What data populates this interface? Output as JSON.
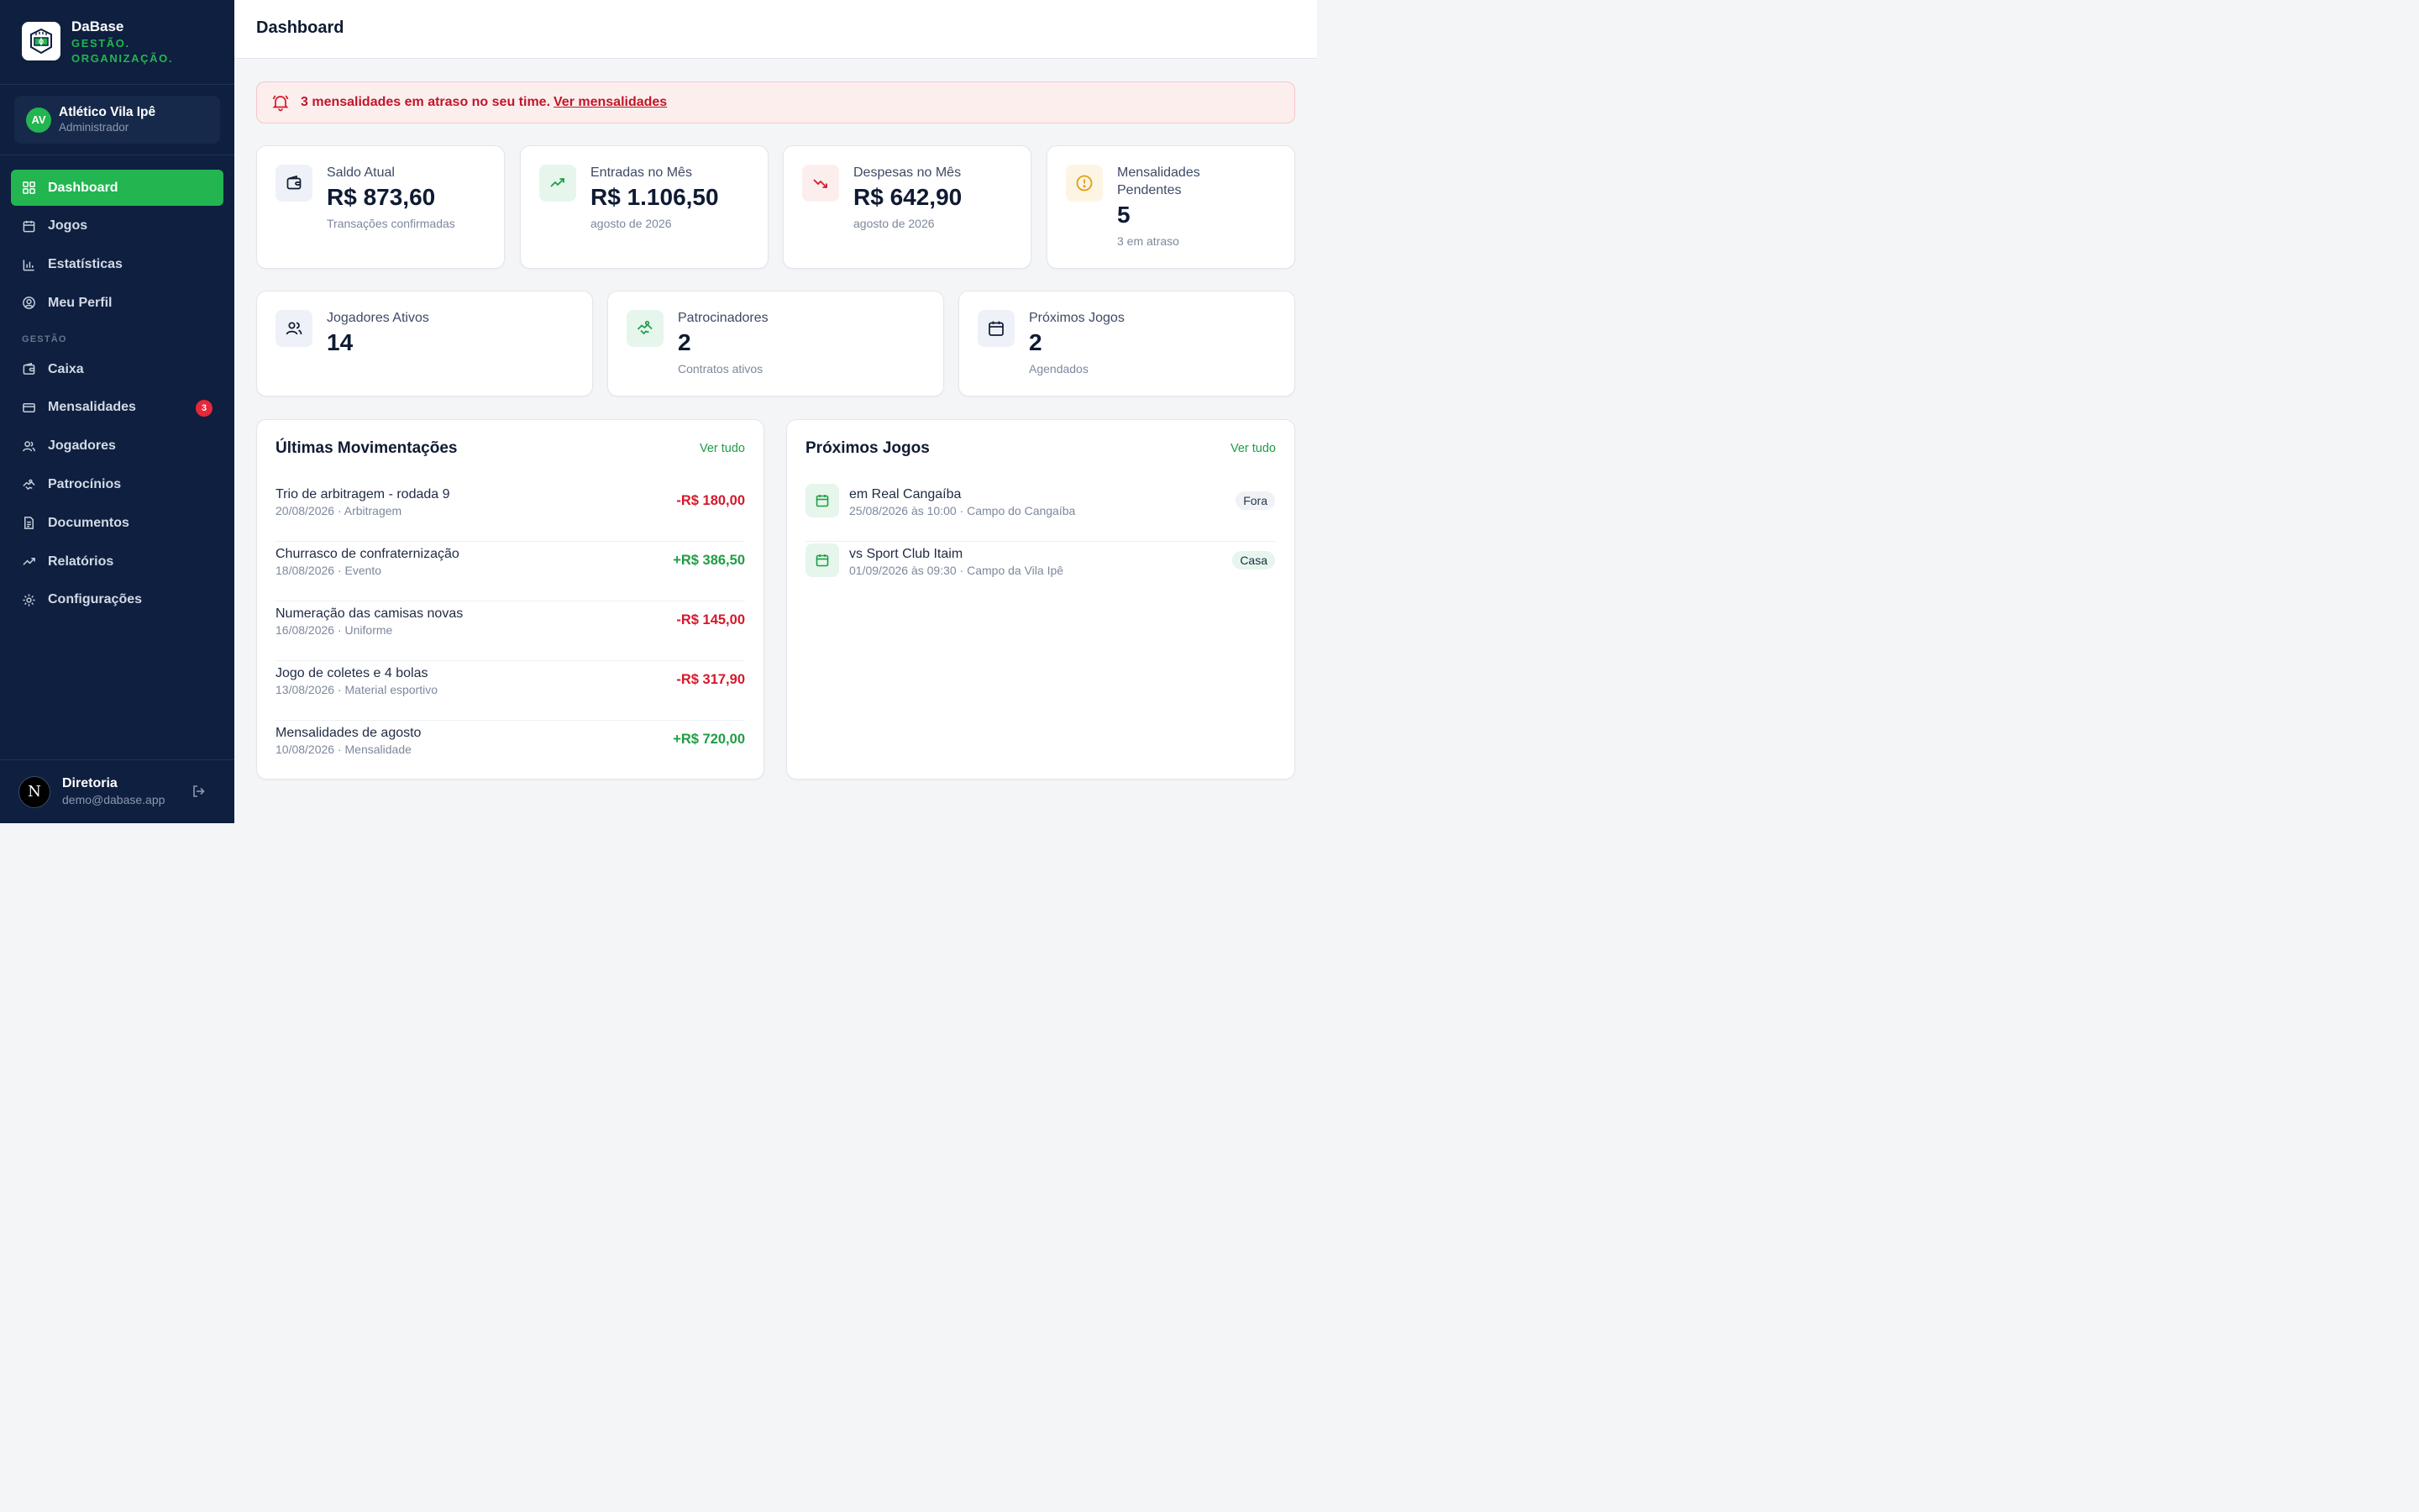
{
  "brand": {
    "name": "DaBase",
    "tagline_1": "GESTÃO.",
    "tagline_2": "ORGANIZAÇÃO."
  },
  "team": {
    "initials": "AV",
    "name": "Atlético Vila Ipê",
    "role": "Administrador"
  },
  "nav": {
    "dashboard": "Dashboard",
    "jogos": "Jogos",
    "estatisticas": "Estatísticas",
    "perfil": "Meu Perfil",
    "section_gestao": "GESTÃO",
    "caixa": "Caixa",
    "mensalidades": "Mensalidades",
    "mensalidades_badge": "3",
    "jogadores": "Jogadores",
    "patrocinios": "Patrocínios",
    "documentos": "Documentos",
    "relatorios": "Relatórios",
    "configuracoes": "Configurações"
  },
  "user": {
    "initial": "N",
    "name": "Diretoria",
    "email": "demo@dabase.app"
  },
  "header": {
    "title": "Dashboard"
  },
  "alert": {
    "message": "3 mensalidades em atraso no seu time.",
    "link": "Ver mensalidades"
  },
  "stats": {
    "saldo": {
      "label": "Saldo Atual",
      "value": "R$ 873,60",
      "sub": "Transações confirmadas"
    },
    "entradas": {
      "label": "Entradas no Mês",
      "value": "R$ 1.106,50",
      "sub": "agosto de 2026"
    },
    "despesas": {
      "label": "Despesas no Mês",
      "value": "R$ 642,90",
      "sub": "agosto de 2026"
    },
    "mensalidades": {
      "label_1": "Mensalidades",
      "label_2": "Pendentes",
      "value": "5",
      "sub": "3 em atraso"
    },
    "jogadores": {
      "label": "Jogadores Ativos",
      "value": "14"
    },
    "patrocinadores": {
      "label": "Patrocinadores",
      "value": "2",
      "sub": "Contratos ativos"
    },
    "proximos": {
      "label": "Próximos Jogos",
      "value": "2",
      "sub": "Agendados"
    }
  },
  "movimentacoes": {
    "title": "Últimas Movimentações",
    "see_all": "Ver tudo",
    "items": [
      {
        "title": "Trio de arbitragem - rodada 9",
        "sub": "20/08/2026 · Arbitragem",
        "amount": "-R$ 180,00"
      },
      {
        "title": "Churrasco de confraternização",
        "sub": "18/08/2026 · Evento",
        "amount": "+R$ 386,50"
      },
      {
        "title": "Numeração das camisas novas",
        "sub": "16/08/2026 · Uniforme",
        "amount": "-R$ 145,00"
      },
      {
        "title": "Jogo de coletes e 4 bolas",
        "sub": "13/08/2026 · Material esportivo",
        "amount": "-R$ 317,90"
      },
      {
        "title": "Mensalidades de agosto",
        "sub": "10/08/2026 · Mensalidade",
        "amount": "+R$ 720,00"
      }
    ]
  },
  "jogos": {
    "title": "Próximos Jogos",
    "see_all": "Ver tudo",
    "items": [
      {
        "title": "em Real Cangaíba",
        "sub": "25/08/2026 às 10:00 · Campo do Cangaíba",
        "tag": "Fora"
      },
      {
        "title": "vs Sport Club Itaim",
        "sub": "01/09/2026 às 09:30 · Campo da Vila Ipê",
        "tag": "Casa"
      }
    ]
  },
  "colors": {
    "sidebar": "#0e1f3f",
    "accent": "#22b550",
    "negative": "#d3192b",
    "positive": "#1f9d45",
    "alert_bg": "#fdeeee"
  }
}
